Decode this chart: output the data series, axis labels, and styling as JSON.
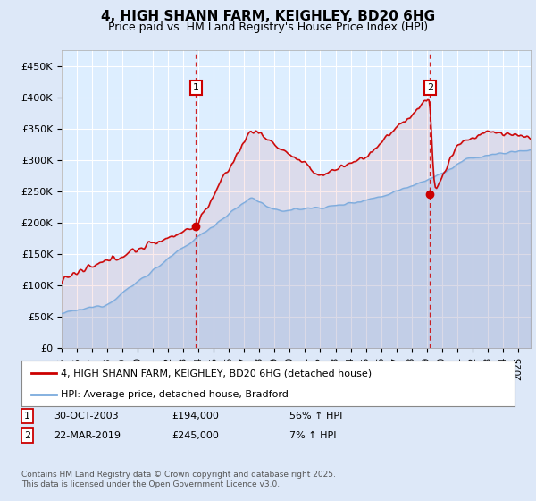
{
  "title": "4, HIGH SHANN FARM, KEIGHLEY, BD20 6HG",
  "subtitle": "Price paid vs. HM Land Registry's House Price Index (HPI)",
  "bg_color": "#dde8f8",
  "plot_bg_color": "#ddeeff",
  "red_color": "#cc0000",
  "blue_color": "#7aaadd",
  "ylim": [
    0,
    475000
  ],
  "yticks": [
    0,
    50000,
    100000,
    150000,
    200000,
    250000,
    300000,
    350000,
    400000,
    450000
  ],
  "ytick_labels": [
    "£0",
    "£50K",
    "£100K",
    "£150K",
    "£200K",
    "£250K",
    "£300K",
    "£350K",
    "£400K",
    "£450K"
  ],
  "xmin": 1995.0,
  "xmax": 2025.83,
  "purchase1_x": 2003.83,
  "purchase1_y": 194000,
  "purchase1_label": "1",
  "purchase2_x": 2019.22,
  "purchase2_y": 245000,
  "purchase2_label": "2",
  "legend_line1": "4, HIGH SHANN FARM, KEIGHLEY, BD20 6HG (detached house)",
  "legend_line2": "HPI: Average price, detached house, Bradford",
  "table_row1": [
    "1",
    "30-OCT-2003",
    "£194,000",
    "56% ↑ HPI"
  ],
  "table_row2": [
    "2",
    "22-MAR-2019",
    "£245,000",
    "7% ↑ HPI"
  ],
  "footnote": "Contains HM Land Registry data © Crown copyright and database right 2025.\nThis data is licensed under the Open Government Licence v3.0.",
  "grid_color": "#ffffff",
  "dashed_color": "#cc0000"
}
